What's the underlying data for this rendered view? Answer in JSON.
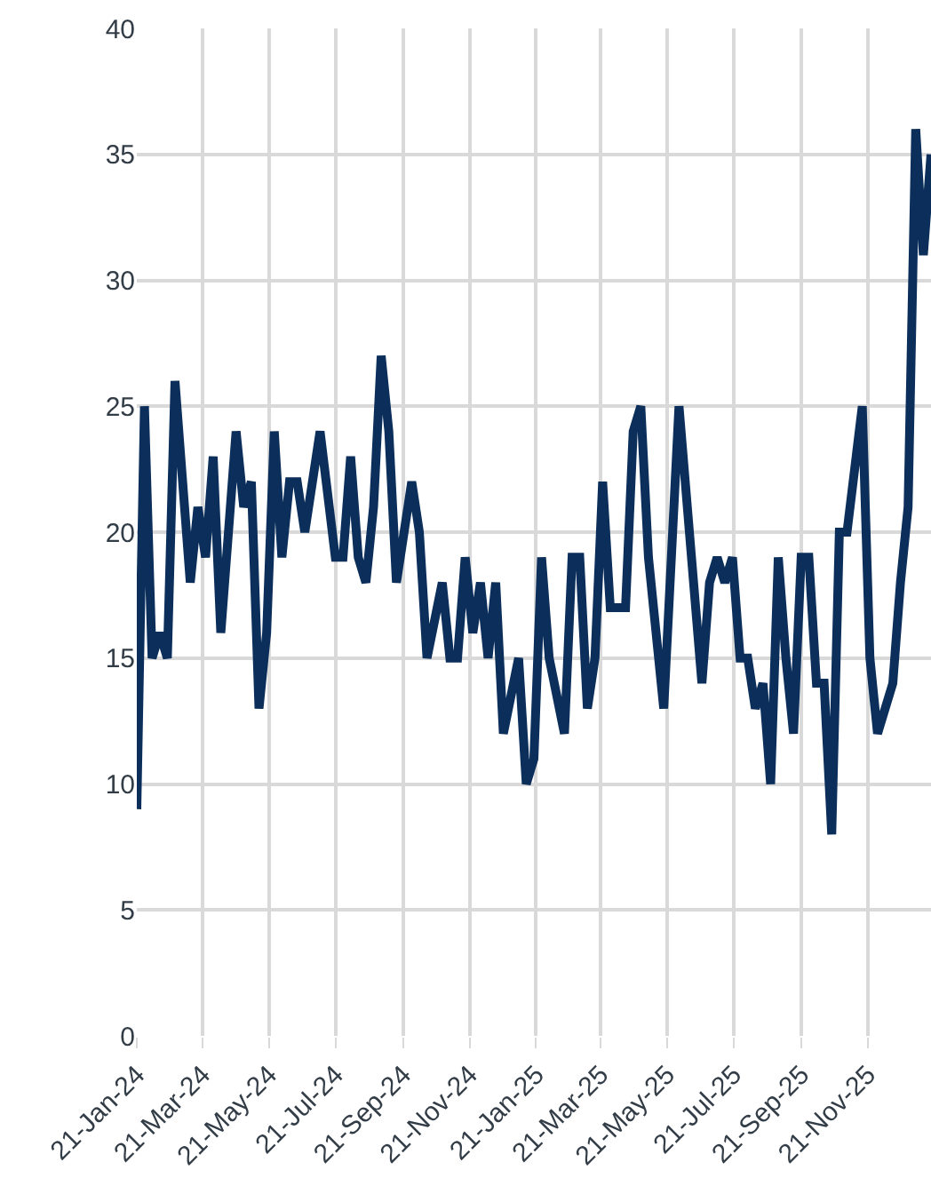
{
  "chart_data": {
    "type": "line",
    "x": [
      "2024-01-21",
      "2024-01-28",
      "2024-02-04",
      "2024-02-11",
      "2024-02-18",
      "2024-02-25",
      "2024-03-10",
      "2024-03-17",
      "2024-03-24",
      "2024-03-31",
      "2024-04-07",
      "2024-04-21",
      "2024-04-28",
      "2024-05-05",
      "2024-05-12",
      "2024-05-19",
      "2024-05-26",
      "2024-06-02",
      "2024-06-09",
      "2024-06-16",
      "2024-06-23",
      "2024-07-07",
      "2024-07-21",
      "2024-07-28",
      "2024-08-04",
      "2024-08-11",
      "2024-08-18",
      "2024-08-25",
      "2024-09-01",
      "2024-09-08",
      "2024-09-15",
      "2024-09-29",
      "2024-10-06",
      "2024-10-13",
      "2024-10-27",
      "2024-11-03",
      "2024-11-10",
      "2024-11-17",
      "2024-11-24",
      "2024-12-01",
      "2024-12-08",
      "2024-12-15",
      "2024-12-22",
      "2025-01-05",
      "2025-01-12",
      "2025-01-19",
      "2025-01-26",
      "2025-02-02",
      "2025-02-16",
      "2025-02-23",
      "2025-03-02",
      "2025-03-09",
      "2025-03-16",
      "2025-03-23",
      "2025-03-30",
      "2025-04-13",
      "2025-04-20",
      "2025-04-27",
      "2025-05-04",
      "2025-05-18",
      "2025-06-01",
      "2025-06-22",
      "2025-06-29",
      "2025-07-06",
      "2025-07-13",
      "2025-07-20",
      "2025-07-27",
      "2025-08-03",
      "2025-08-10",
      "2025-08-17",
      "2025-08-24",
      "2025-08-31",
      "2025-09-07",
      "2025-09-14",
      "2025-09-21",
      "2025-09-28",
      "2025-10-05",
      "2025-10-12",
      "2025-10-19",
      "2025-10-26",
      "2025-11-02",
      "2025-11-16",
      "2025-11-23",
      "2025-11-30",
      "2025-12-14",
      "2025-12-21",
      "2025-12-28",
      "2026-01-04",
      "2026-01-11",
      "2026-01-18"
    ],
    "series": [
      {
        "color": "#0b2f5a",
        "values": [
          9,
          25,
          15,
          16,
          15,
          26,
          18,
          21,
          19,
          23,
          16,
          24,
          21,
          22,
          13,
          16,
          24,
          19,
          22,
          22,
          20,
          24,
          19,
          19,
          23,
          19,
          18,
          21,
          27,
          24,
          18,
          22,
          20,
          15,
          18,
          15,
          15,
          19,
          16,
          18,
          15,
          18,
          12,
          15,
          10,
          11,
          19,
          15,
          12,
          19,
          19,
          13,
          15,
          22,
          17,
          17,
          24,
          25,
          19,
          13,
          25,
          14,
          18,
          19,
          18,
          19,
          15,
          15,
          13,
          14,
          10,
          19,
          15,
          12,
          19,
          19,
          14,
          14,
          8,
          20,
          20,
          25,
          15,
          12,
          14,
          18,
          21,
          36,
          31,
          35
        ]
      }
    ],
    "xlim": [
      "2024-01-21",
      "2026-01-18"
    ],
    "xticks": [
      {
        "value": "2024-01-21",
        "label": "21-Jan-24"
      },
      {
        "value": "2024-03-21",
        "label": "21-Mar-24"
      },
      {
        "value": "2024-05-21",
        "label": "21-May-24"
      },
      {
        "value": "2024-07-21",
        "label": "21-Jul-24"
      },
      {
        "value": "2024-09-21",
        "label": "21-Sep-24"
      },
      {
        "value": "2024-11-21",
        "label": "21-Nov-24"
      },
      {
        "value": "2025-01-21",
        "label": "21-Jan-25"
      },
      {
        "value": "2025-03-21",
        "label": "21-Mar-25"
      },
      {
        "value": "2025-05-21",
        "label": "21-May-25"
      },
      {
        "value": "2025-07-21",
        "label": "21-Jul-25"
      },
      {
        "value": "2025-09-21",
        "label": "21-Sep-25"
      },
      {
        "value": "2025-11-21",
        "label": "21-Nov-25"
      }
    ],
    "ylim": [
      0,
      40
    ],
    "yticks": [
      0,
      5,
      10,
      15,
      20,
      25,
      30,
      35,
      40
    ],
    "grid": true,
    "marker": "none",
    "line_style": "solid",
    "legend": false
  }
}
